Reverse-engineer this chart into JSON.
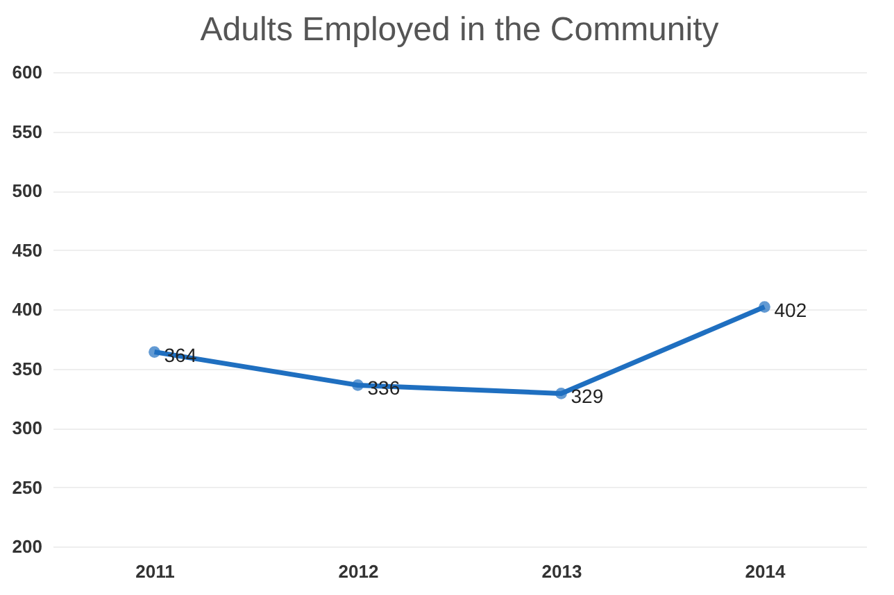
{
  "chart_data": {
    "type": "line",
    "title": "Adults Employed in the Community",
    "categories": [
      "2011",
      "2012",
      "2013",
      "2014"
    ],
    "series": [
      {
        "color": "#1f6fc0",
        "values": [
          364,
          336,
          329,
          402
        ]
      }
    ],
    "ylim": [
      200,
      600
    ],
    "yticks": [
      200,
      250,
      300,
      350,
      400,
      450,
      500,
      550,
      600
    ],
    "grid": "y",
    "marker": "circle",
    "line_style": "solid",
    "data_labels": true,
    "legend": false
  }
}
